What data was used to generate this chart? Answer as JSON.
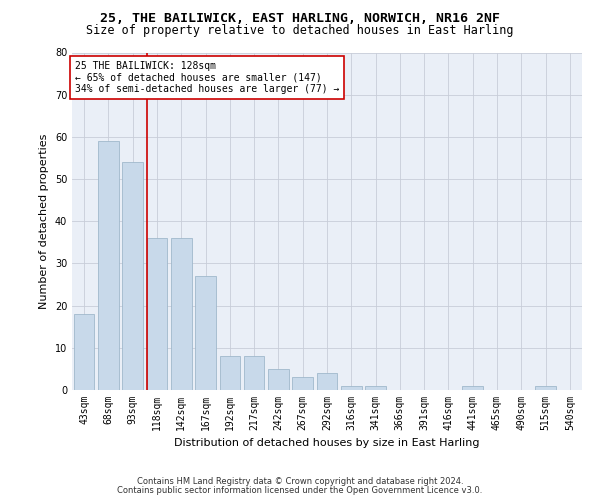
{
  "title1": "25, THE BAILIWICK, EAST HARLING, NORWICH, NR16 2NF",
  "title2": "Size of property relative to detached houses in East Harling",
  "xlabel": "Distribution of detached houses by size in East Harling",
  "ylabel": "Number of detached properties",
  "categories": [
    "43sqm",
    "68sqm",
    "93sqm",
    "118sqm",
    "142sqm",
    "167sqm",
    "192sqm",
    "217sqm",
    "242sqm",
    "267sqm",
    "292sqm",
    "316sqm",
    "341sqm",
    "366sqm",
    "391sqm",
    "416sqm",
    "441sqm",
    "465sqm",
    "490sqm",
    "515sqm",
    "540sqm"
  ],
  "values": [
    18,
    59,
    54,
    36,
    36,
    27,
    8,
    8,
    5,
    3,
    4,
    1,
    1,
    0,
    0,
    0,
    1,
    0,
    0,
    1,
    0
  ],
  "bar_color": "#c8d9ea",
  "bar_edge_color": "#a0b8cc",
  "vline_x": 3.0,
  "vline_color": "#cc0000",
  "annotation_text": "25 THE BAILIWICK: 128sqm\n← 65% of detached houses are smaller (147)\n34% of semi-detached houses are larger (77) →",
  "annotation_box_color": "#ffffff",
  "annotation_box_edgecolor": "#cc0000",
  "ylim": [
    0,
    80
  ],
  "yticks": [
    0,
    10,
    20,
    30,
    40,
    50,
    60,
    70,
    80
  ],
  "grid_color": "#c8cdd8",
  "bg_color": "#eaeff7",
  "footer1": "Contains HM Land Registry data © Crown copyright and database right 2024.",
  "footer2": "Contains public sector information licensed under the Open Government Licence v3.0.",
  "title_fontsize": 9.5,
  "subtitle_fontsize": 8.5,
  "ylabel_fontsize": 8,
  "xlabel_fontsize": 8,
  "tick_fontsize": 7,
  "annot_fontsize": 7,
  "footer_fontsize": 6
}
